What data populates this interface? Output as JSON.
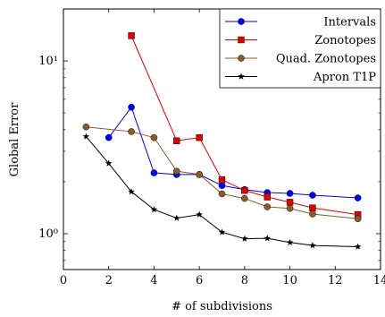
{
  "chart_data": {
    "type": "line",
    "xlabel": "# of subdivisions",
    "ylabel": "Global Error",
    "xlim": [
      0,
      14
    ],
    "ylim": [
      0.62,
      20
    ],
    "yscale": "log",
    "xticks": [
      0,
      2,
      4,
      6,
      8,
      10,
      12,
      14
    ],
    "xtick_labels": [
      "0",
      "2",
      "4",
      "6",
      "8",
      "10",
      "12",
      "14"
    ],
    "yticks": [
      1,
      10
    ],
    "ytick_labels": [
      "10⁰",
      "10¹"
    ],
    "grid": false,
    "legend_position": "top-right",
    "series": [
      {
        "name": "Intervals",
        "color": "#0000ee",
        "marker": "circle",
        "x": [
          2,
          3,
          4,
          5,
          6,
          7,
          8,
          9,
          10,
          11,
          13
        ],
        "y": [
          3.6,
          5.4,
          2.25,
          2.2,
          2.2,
          1.9,
          1.8,
          1.73,
          1.71,
          1.67,
          1.61
        ]
      },
      {
        "name": "Zonotopes",
        "color": "#dd0000",
        "marker": "square",
        "x": [
          3,
          5,
          6,
          7,
          8,
          9,
          10,
          11,
          13
        ],
        "y": [
          14.0,
          3.45,
          3.6,
          2.05,
          1.78,
          1.63,
          1.52,
          1.41,
          1.29
        ]
      },
      {
        "name": "Quad. Zonotopes",
        "color": "#8b5a2b",
        "marker": "circle",
        "x": [
          1,
          3,
          4,
          5,
          6,
          7,
          8,
          9,
          10,
          11,
          13
        ],
        "y": [
          4.15,
          3.9,
          3.6,
          2.3,
          2.2,
          1.7,
          1.6,
          1.43,
          1.4,
          1.3,
          1.22
        ]
      },
      {
        "name": "Apron T1P",
        "color": "#000000",
        "marker": "star",
        "x": [
          1,
          2,
          3,
          4,
          5,
          6,
          7,
          8,
          9,
          10,
          11,
          13
        ],
        "y": [
          3.65,
          2.55,
          1.75,
          1.38,
          1.23,
          1.29,
          1.02,
          0.935,
          0.94,
          0.89,
          0.855,
          0.84
        ]
      }
    ]
  }
}
